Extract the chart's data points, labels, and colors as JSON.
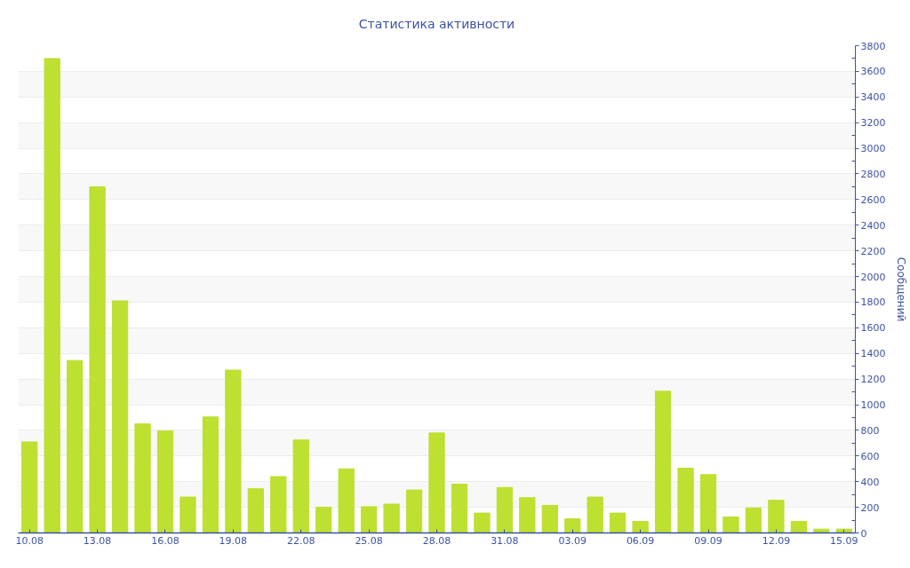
{
  "chart_data": {
    "type": "bar",
    "title": "Статистика активности",
    "ylabel": "Сообщений",
    "categories": [
      "10.08",
      null,
      null,
      "13.08",
      null,
      null,
      "16.08",
      null,
      null,
      "19.08",
      null,
      null,
      "22.08",
      null,
      null,
      "25.08",
      null,
      null,
      "28.08",
      null,
      null,
      "31.08",
      null,
      null,
      "03.09",
      null,
      null,
      "06.09",
      null,
      null,
      "09.09",
      null,
      null,
      "12.09",
      null,
      null,
      "15.09"
    ],
    "values": [
      710,
      3700,
      1345,
      2700,
      1810,
      850,
      795,
      280,
      905,
      1270,
      345,
      440,
      725,
      200,
      500,
      205,
      225,
      335,
      780,
      380,
      155,
      355,
      275,
      215,
      110,
      280,
      155,
      90,
      1105,
      505,
      455,
      125,
      195,
      255,
      90,
      30,
      30
    ],
    "color": "#bde031",
    "ylim": [
      0,
      3800
    ],
    "yticks": [
      0,
      {
        "value": 100,
        "label": null
      },
      200,
      {
        "value": 300,
        "label": null
      },
      400,
      {
        "value": 500,
        "label": null
      },
      600,
      {
        "value": 700,
        "label": null
      },
      800,
      {
        "value": 900,
        "label": null
      },
      1000,
      {
        "value": 1100,
        "label": null
      },
      1200,
      {
        "value": 1300,
        "label": null
      },
      1400,
      {
        "value": 1500,
        "label": null
      },
      1600,
      {
        "value": 1700,
        "label": null
      },
      1800,
      {
        "value": 1900,
        "label": null
      },
      2000,
      {
        "value": 2100,
        "label": null
      },
      2200,
      {
        "value": 2300,
        "label": null
      },
      2400,
      {
        "value": 2500,
        "label": null
      },
      2600,
      {
        "value": 2700,
        "label": null
      },
      2800,
      {
        "value": 2900,
        "label": null
      },
      3000,
      {
        "value": 3100,
        "label": null
      },
      3200,
      {
        "value": 3300,
        "label": null
      },
      3400,
      {
        "value": 3500,
        "label": null
      },
      3600,
      {
        "value": 3700,
        "label": null
      },
      3800
    ],
    "grid": "y"
  }
}
